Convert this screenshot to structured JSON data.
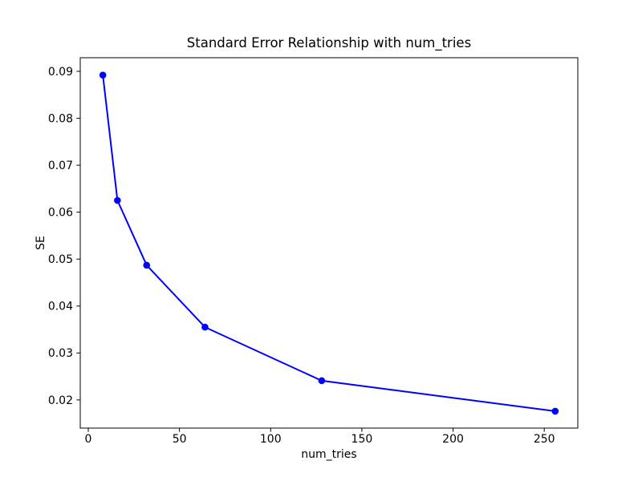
{
  "figure": {
    "background": "#ffffff"
  },
  "chart_data": {
    "type": "line",
    "title": "Standard Error Relationship with num_tries",
    "xlabel": "num_tries",
    "ylabel": "SE",
    "x": [
      8,
      16,
      32,
      64,
      128,
      256
    ],
    "y": [
      0.0892,
      0.0625,
      0.0487,
      0.0355,
      0.0241,
      0.0176
    ],
    "xlim": [
      -4.4,
      268.4
    ],
    "ylim": [
      0.014,
      0.0929
    ],
    "xticks": {
      "values": [
        0,
        50,
        100,
        150,
        200,
        250
      ],
      "labels": [
        "0",
        "50",
        "100",
        "150",
        "200",
        "250"
      ]
    },
    "yticks": {
      "values": [
        0.02,
        0.03,
        0.04,
        0.05,
        0.06,
        0.07,
        0.08,
        0.09
      ],
      "labels": [
        "0.02",
        "0.03",
        "0.04",
        "0.05",
        "0.06",
        "0.07",
        "0.08",
        "0.09"
      ]
    },
    "grid": false,
    "legend_position": "none",
    "line_color": "#0000ff",
    "marker": "o",
    "axis_color": "#000000"
  }
}
